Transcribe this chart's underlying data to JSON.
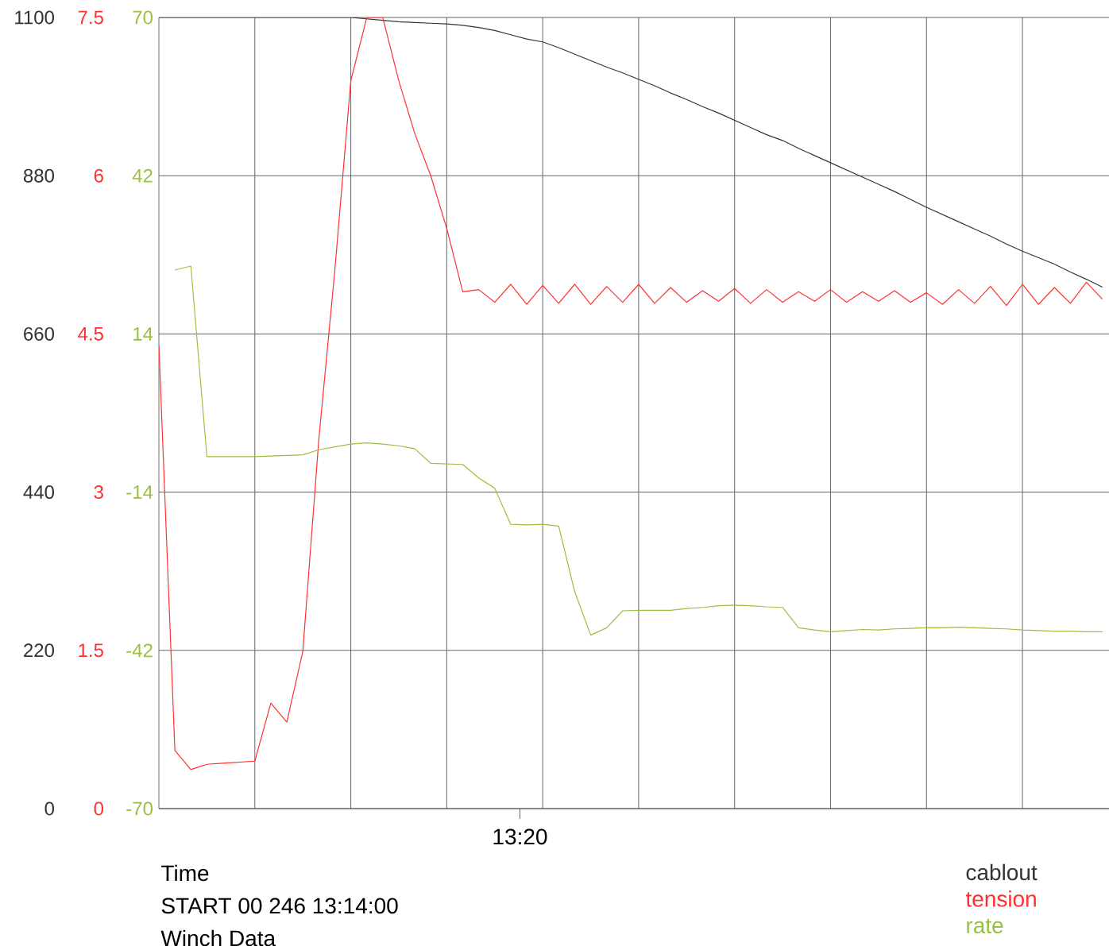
{
  "chart_data": {
    "type": "line",
    "xlabel": "Time",
    "annotations": [
      "13:20",
      "START 00 246 13:14:00",
      "Winch Data"
    ],
    "categories": [
      null,
      null,
      null,
      null,
      null,
      null,
      null,
      null,
      null,
      null,
      null,
      null,
      null,
      null,
      null,
      null,
      null,
      null,
      null,
      null,
      null,
      null,
      null,
      null,
      null,
      null,
      null,
      null,
      null,
      null,
      null,
      null,
      null,
      null,
      null,
      null,
      null,
      null,
      null,
      null,
      null,
      null,
      null,
      null,
      null,
      null,
      null,
      null,
      null,
      null,
      null,
      null,
      null,
      null,
      null,
      null,
      null,
      null,
      null,
      null
    ],
    "ylim": [
      0,
      1100
    ],
    "yticks": [
      0,
      220,
      440,
      660,
      880,
      1100
    ],
    "y2lim": [
      0,
      7.5
    ],
    "y2ticks": [
      0,
      1.5,
      3,
      4.5,
      6,
      7.5
    ],
    "y3lim": [
      -70,
      70
    ],
    "y3ticks": [
      -70,
      -42,
      -14,
      14,
      42,
      70
    ],
    "grid": true,
    "legend": "bottom right",
    "marker": "none",
    "line_style": "solid",
    "series": [
      {
        "name": "cablout",
        "color": "#333333",
        "values": [
          1100,
          1100,
          1100,
          1100,
          1100,
          1100,
          1100,
          1100,
          1100,
          1100,
          1100,
          1100,
          1100,
          1098,
          1096,
          1094,
          1093,
          1092,
          1091,
          1089,
          1086,
          1082,
          1076,
          1070,
          1066,
          1058,
          1049,
          1040,
          1031,
          1023,
          1014,
          1005,
          995,
          986,
          976,
          967,
          957,
          947,
          937,
          929,
          918,
          908,
          898,
          888,
          878,
          868,
          858,
          847,
          836,
          826,
          816,
          806,
          796,
          785,
          775,
          766,
          757,
          746,
          736,
          725
        ]
      },
      {
        "name": "tension",
        "color": "#ff3030",
        "axis": "y2",
        "values": [
          4.39,
          0.55,
          0.37,
          0.42,
          0.43,
          0.44,
          0.45,
          1.0,
          0.82,
          1.49,
          3.5,
          5.1,
          6.9,
          7.5,
          7.5,
          6.9,
          6.4,
          6.0,
          5.5,
          4.9,
          4.92,
          4.8,
          4.97,
          4.78,
          4.96,
          4.79,
          4.97,
          4.78,
          4.95,
          4.8,
          4.97,
          4.79,
          4.94,
          4.8,
          4.91,
          4.81,
          4.93,
          4.79,
          4.92,
          4.8,
          4.9,
          4.81,
          4.92,
          4.8,
          4.9,
          4.81,
          4.91,
          4.8,
          4.89,
          4.78,
          4.92,
          4.79,
          4.95,
          4.77,
          4.97,
          4.78,
          4.94,
          4.79,
          4.99,
          4.83
        ]
      },
      {
        "name": "rate",
        "color": "#99c040",
        "axis": "y3",
        "values": [
          null,
          25.3,
          26.0,
          -7.7,
          -7.7,
          -7.7,
          -7.7,
          -7.6,
          -7.5,
          -7.4,
          -6.5,
          -6.0,
          -5.5,
          -5.3,
          -5.5,
          -5.8,
          -6.3,
          -8.9,
          -9.0,
          -9.1,
          -11.5,
          -13.3,
          -19.7,
          -19.8,
          -19.7,
          -20.0,
          -31.6,
          -39.3,
          -38.0,
          -35.0,
          -34.9,
          -34.9,
          -34.9,
          -34.6,
          -34.4,
          -34.1,
          -34.0,
          -34.1,
          -34.3,
          -34.4,
          -38.0,
          -38.4,
          -38.7,
          -38.5,
          -38.3,
          -38.4,
          -38.2,
          -38.1,
          -38.0,
          -38.0,
          -37.9,
          -38.0,
          -38.1,
          -38.2,
          -38.4,
          -38.5,
          -38.6,
          -38.6,
          -38.7,
          -38.7
        ]
      }
    ]
  }
}
